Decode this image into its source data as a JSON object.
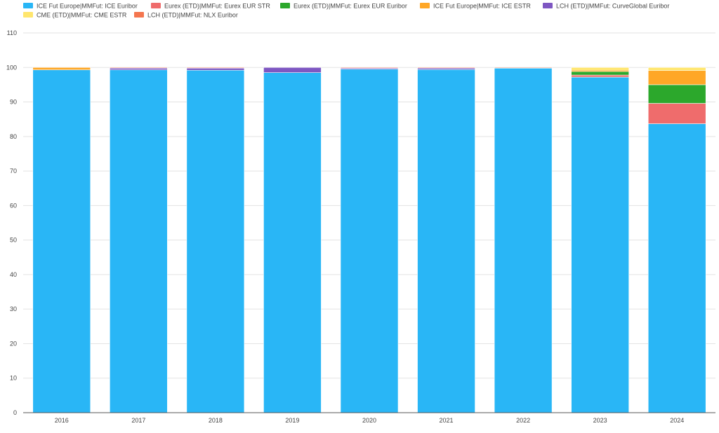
{
  "chart_data": {
    "type": "bar",
    "stacked": true,
    "categories": [
      "2016",
      "2017",
      "2018",
      "2019",
      "2020",
      "2021",
      "2022",
      "2023",
      "2024"
    ],
    "series": [
      {
        "name": "ICE Fut Europe|MMFut: ICE Euribor",
        "color": "#29b6f6",
        "values": [
          99.3,
          99.3,
          99.2,
          98.5,
          99.5,
          99.4,
          99.8,
          97.2,
          83.7
        ]
      },
      {
        "name": "Eurex (ETD)|MMFut: Eurex EUR STR",
        "color": "#ef6c6c",
        "values": [
          0,
          0,
          0,
          0,
          0,
          0,
          0,
          0.6,
          5.9
        ]
      },
      {
        "name": "Eurex (ETD)|MMFut: Eurex EUR Euribor",
        "color": "#2ca82c",
        "values": [
          0,
          0,
          0,
          0,
          0,
          0,
          0,
          1.0,
          5.4
        ]
      },
      {
        "name": "ICE Fut Europe|MMFut: ICE ESTR",
        "color": "#ffa726",
        "values": [
          0.7,
          0,
          0,
          0,
          0,
          0,
          0,
          0.4,
          4.1
        ]
      },
      {
        "name": "LCH (ETD)|MMFut: CurveGlobal Euribor",
        "color": "#7e57c2",
        "values": [
          0,
          0.5,
          0.6,
          1.5,
          0.3,
          0.4,
          0,
          0,
          0
        ]
      },
      {
        "name": "CME (ETD)|MMFut: CME ESTR",
        "color": "#ffe66d",
        "values": [
          0,
          0,
          0,
          0,
          0,
          0,
          0,
          0.8,
          0.9
        ]
      },
      {
        "name": "LCH (ETD)|MMFut: NLX Euribor",
        "color": "#f4764f",
        "values": [
          0,
          0.2,
          0.2,
          0,
          0.2,
          0.2,
          0.2,
          0,
          0
        ]
      }
    ],
    "xlabel": "",
    "ylabel": "",
    "ylim": [
      0,
      110
    ],
    "yticks": [
      "0",
      "10",
      "20",
      "30",
      "40",
      "50",
      "60",
      "70",
      "80",
      "90",
      "100",
      "110"
    ],
    "grid": true,
    "legend_position": "top-left"
  }
}
